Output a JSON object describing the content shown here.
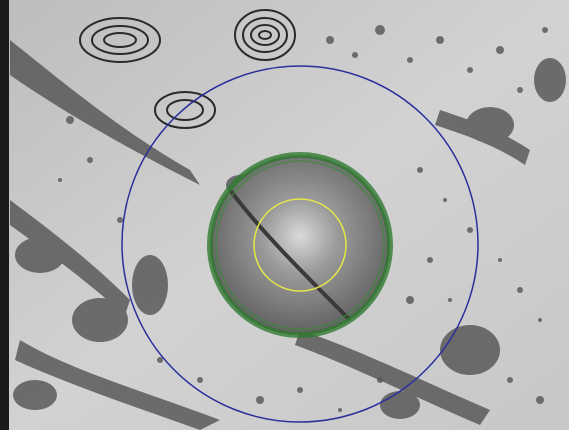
{
  "overlay": {
    "outer_ring_color": "#2b2f9a",
    "middle_ring_color": "#2f7a2f",
    "inner_ring_color": "#e6e64a",
    "field_tone": "#cfcfcf",
    "shadow_tone": "#3a3a3a",
    "disk_tone": "#8a8a8a"
  }
}
